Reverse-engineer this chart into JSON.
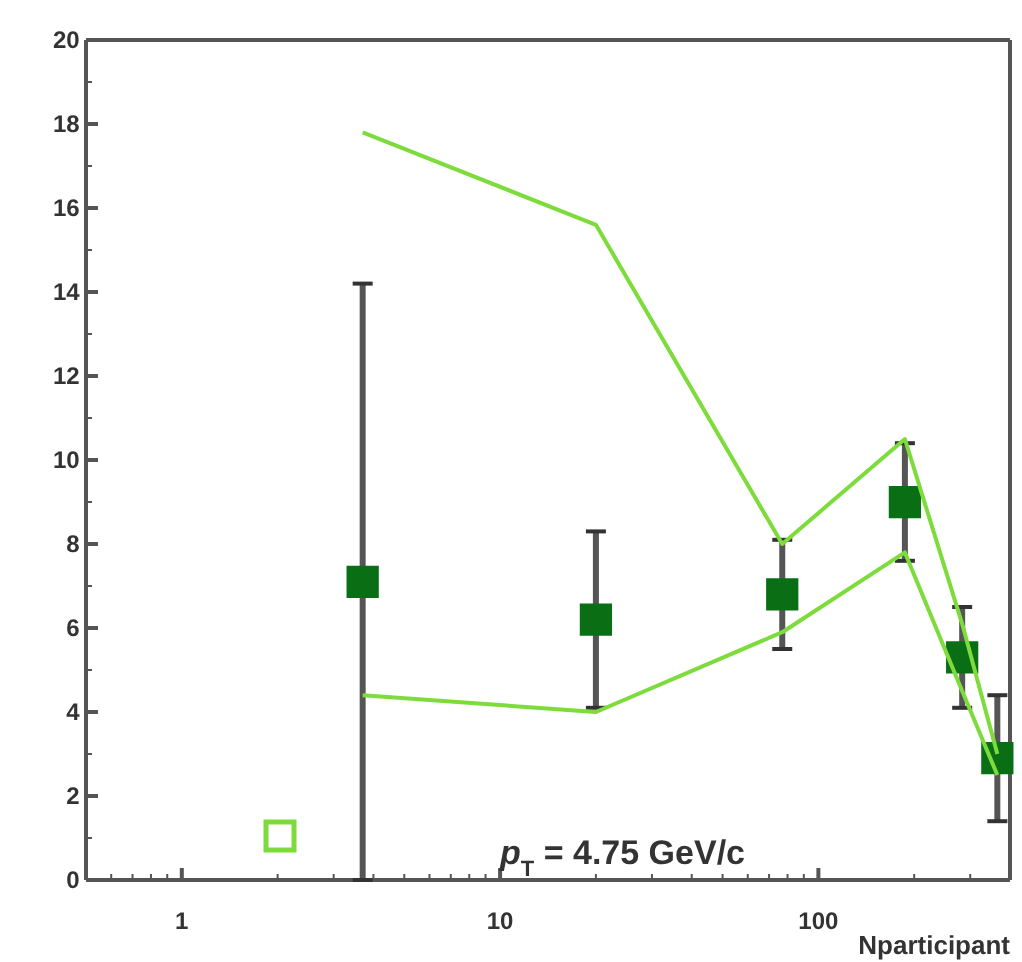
{
  "chart_data": {
    "type": "scatter",
    "xlabel": "Nparticipant",
    "log": "x",
    "xlim": [
      0.5,
      400
    ],
    "xticks": [
      {
        "value": 0.5,
        "label": null
      },
      {
        "value": 0.6,
        "label": null
      },
      {
        "value": 0.7,
        "label": null
      },
      {
        "value": 0.8,
        "label": null
      },
      {
        "value": 0.9,
        "label": null
      },
      1,
      {
        "value": 2,
        "label": null
      },
      {
        "value": 3,
        "label": null
      },
      {
        "value": 4,
        "label": null
      },
      {
        "value": 5,
        "label": null
      },
      {
        "value": 6,
        "label": null
      },
      {
        "value": 7,
        "label": null
      },
      {
        "value": 8,
        "label": null
      },
      {
        "value": 9,
        "label": null
      },
      10,
      {
        "value": 20,
        "label": null
      },
      {
        "value": 30,
        "label": null
      },
      {
        "value": 40,
        "label": null
      },
      {
        "value": 50,
        "label": null
      },
      {
        "value": 60,
        "label": null
      },
      {
        "value": 70,
        "label": null
      },
      {
        "value": 80,
        "label": null
      },
      {
        "value": 90,
        "label": null
      },
      100,
      {
        "value": 200,
        "label": null
      },
      {
        "value": 300,
        "label": null
      },
      {
        "value": 400,
        "label": null
      }
    ],
    "ylim": [
      0,
      20
    ],
    "yticks": [
      0,
      {
        "value": 1,
        "label": null
      },
      2,
      {
        "value": 3,
        "label": null
      },
      4,
      {
        "value": 5,
        "label": null
      },
      6,
      {
        "value": 7,
        "label": null
      },
      8,
      {
        "value": 9,
        "label": null
      },
      10,
      {
        "value": 11,
        "label": null
      },
      12,
      {
        "value": 13,
        "label": null
      },
      14,
      {
        "value": 15,
        "label": null
      },
      16,
      {
        "value": 17,
        "label": null
      },
      18,
      {
        "value": 19,
        "label": null
      },
      20
    ],
    "marker": "square",
    "grid": false,
    "annotations": [
      "p$_{T}$ = 4.75 GeV/c"
    ],
    "series": [
      {
        "type": "line",
        "marker": "none",
        "color": "#7ddc3c",
        "x": [
          3.7,
          20,
          77,
          187,
          283,
          365
        ],
        "values": [
          17.8,
          15.6,
          8.0,
          10.5,
          6.1,
          3.0
        ]
      },
      {
        "type": "line",
        "marker": "none",
        "color": "#7ddc3c",
        "x": [
          3.7,
          20,
          77,
          187,
          283,
          365
        ],
        "values": [
          4.4,
          4.0,
          5.9,
          7.8,
          4.5,
          2.5
        ]
      },
      {
        "color": "#0a6e14",
        "x": [
          3.7,
          20,
          77,
          187,
          283,
          365
        ],
        "values": [
          7.1,
          6.2,
          6.8,
          9.0,
          5.3,
          2.9
        ],
        "errors": [
          7.1,
          2.1,
          1.3,
          1.4,
          1.2,
          1.5
        ]
      }
    ]
  }
}
